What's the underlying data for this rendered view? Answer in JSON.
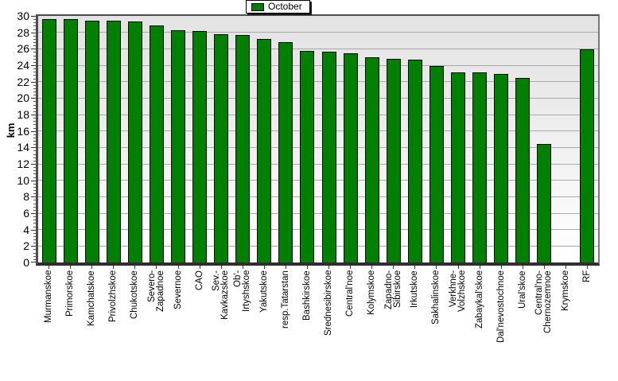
{
  "chart_data": {
    "type": "bar",
    "title": "",
    "legend": {
      "label": "October",
      "position": "top-center",
      "swatch_color": "#008000"
    },
    "xlabel": "",
    "ylabel": "km",
    "ylim": [
      0,
      30
    ],
    "ytick_step": 2,
    "y_minor_divisions": 5,
    "grid": true,
    "bar_color": "#008000",
    "bar_border_color": "#000000",
    "categories": [
      "Murmanskoe",
      "Primorskoe",
      "Kamchatskoe",
      "Privolzhskoe",
      "Chukotskoe",
      "Severo-Zapadnoe",
      "Severnoe",
      "CAO",
      "Sev.-Kavkazskoe",
      "Ob'-Irtyshskoe",
      "Yakutskoe",
      "resp.Tatarstan",
      "Bashkirskoe",
      "Srednesibirskoe",
      "Central'noe",
      "Kolymskoe",
      "Zapadno-Sibirskoe",
      "Irkutskoe",
      "Sakhalinskoe",
      "Verkhne-Volzhskoe",
      "Zabaykal'skoe",
      "Dal'nevostochnoe",
      "Ural'skoe",
      "Central'no-Chernozemnoe",
      "Krymskoe",
      "RF"
    ],
    "category_lines": [
      [
        "Murmanskoe"
      ],
      [
        "Primorskoe"
      ],
      [
        "Kamchatskoe"
      ],
      [
        "Privolzhskoe"
      ],
      [
        "Chukotskoe"
      ],
      [
        "Severo-",
        "Zapadnoe"
      ],
      [
        "Severnoe"
      ],
      [
        "CAO"
      ],
      [
        "Sev.-",
        "Kavkazskoe"
      ],
      [
        "Ob'-",
        "Irtyshskoe"
      ],
      [
        "Yakutskoe"
      ],
      [
        "resp.Tatarstan"
      ],
      [
        "Bashkirskoe"
      ],
      [
        "Srednesibirskoe"
      ],
      [
        "Central'noe"
      ],
      [
        "Kolymskoe"
      ],
      [
        "Zapadno-",
        "Sibirskoe"
      ],
      [
        "Irkutskoe"
      ],
      [
        "Sakhalinskoe"
      ],
      [
        "Verkhne-",
        "Volzhskoe"
      ],
      [
        "Zabaykal'skoe"
      ],
      [
        "Dal'nevostochnoe"
      ],
      [
        "Ural'skoe"
      ],
      [
        "Central'no-",
        "Chernozemnoe"
      ],
      [
        "Krymskoe"
      ],
      [
        "RF"
      ]
    ],
    "values": [
      29.6,
      29.6,
      29.4,
      29.4,
      29.3,
      28.8,
      28.3,
      28.2,
      27.8,
      27.7,
      27.2,
      26.8,
      25.7,
      25.6,
      25.5,
      25.0,
      24.8,
      24.7,
      23.9,
      23.1,
      23.1,
      22.9,
      22.5,
      14.4,
      0,
      25.9
    ]
  },
  "colors": {
    "grid": "#a9a9a9",
    "axis": "#2e2e2e",
    "plot_bg_top": "#e3e3e3",
    "plot_bg_bottom": "#ffffff",
    "text": "#000000"
  }
}
